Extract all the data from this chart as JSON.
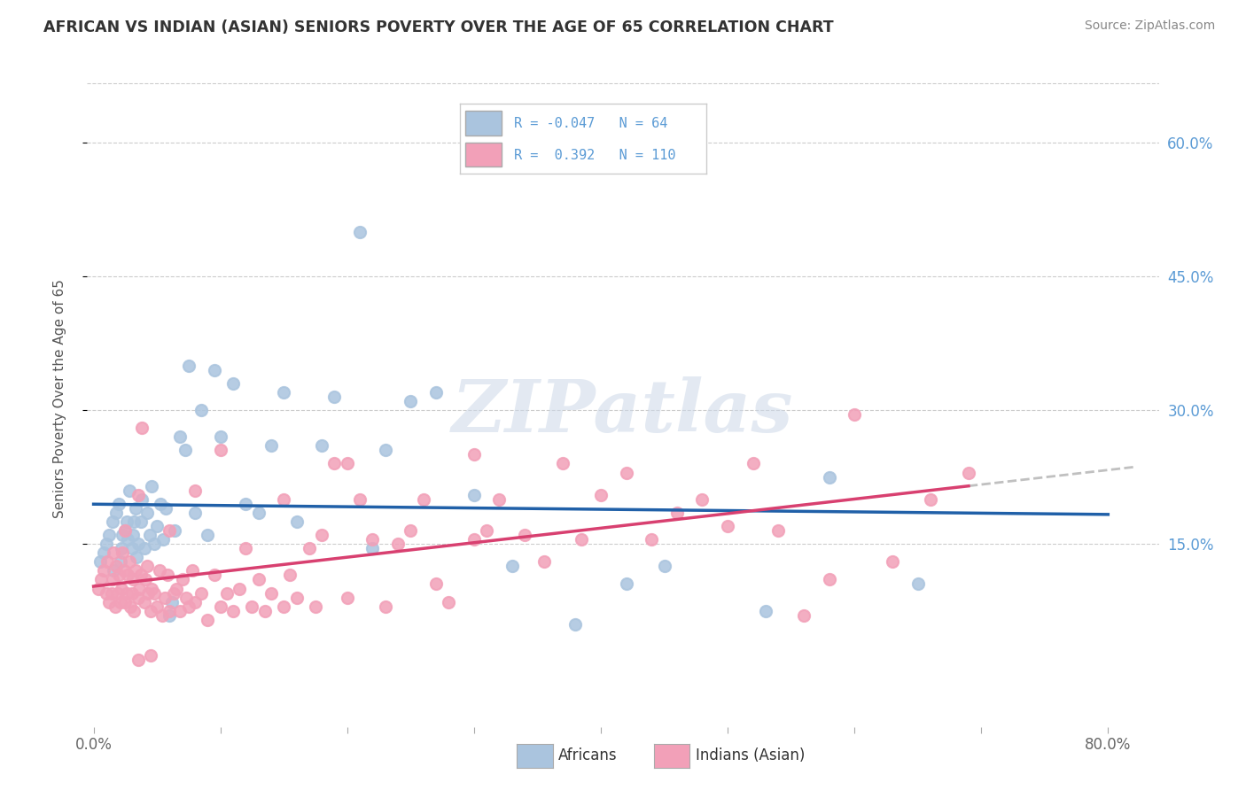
{
  "title": "AFRICAN VS INDIAN (ASIAN) SENIORS POVERTY OVER THE AGE OF 65 CORRELATION CHART",
  "source": "Source: ZipAtlas.com",
  "ylabel": "Seniors Poverty Over the Age of 65",
  "yticks_labels": [
    "60.0%",
    "45.0%",
    "30.0%",
    "15.0%"
  ],
  "ytick_vals": [
    0.6,
    0.45,
    0.3,
    0.15
  ],
  "xlim": [
    -0.005,
    0.84
  ],
  "ylim": [
    -0.055,
    0.68
  ],
  "african_color": "#aac4de",
  "indian_color": "#f2a0b8",
  "african_R": -0.047,
  "african_N": 64,
  "indian_R": 0.392,
  "indian_N": 110,
  "legend_label_1": "Africans",
  "legend_label_2": "Indians (Asian)",
  "trend_african_color": "#2060a8",
  "trend_indian_color": "#d84070",
  "trend_dash_color": "#c0c0c0",
  "watermark_text": "ZIPatlas",
  "xtick_positions": [
    0.0,
    0.1,
    0.2,
    0.3,
    0.4,
    0.5,
    0.6,
    0.7,
    0.8
  ],
  "africans_x": [
    0.005,
    0.008,
    0.01,
    0.012,
    0.015,
    0.016,
    0.018,
    0.02,
    0.021,
    0.022,
    0.023,
    0.025,
    0.026,
    0.027,
    0.028,
    0.03,
    0.031,
    0.032,
    0.033,
    0.034,
    0.035,
    0.037,
    0.038,
    0.04,
    0.042,
    0.044,
    0.046,
    0.048,
    0.05,
    0.053,
    0.055,
    0.057,
    0.06,
    0.062,
    0.064,
    0.068,
    0.072,
    0.075,
    0.08,
    0.085,
    0.09,
    0.095,
    0.1,
    0.11,
    0.12,
    0.13,
    0.14,
    0.15,
    0.16,
    0.18,
    0.19,
    0.21,
    0.22,
    0.23,
    0.25,
    0.27,
    0.3,
    0.33,
    0.38,
    0.42,
    0.45,
    0.53,
    0.58,
    0.65
  ],
  "africans_y": [
    0.13,
    0.14,
    0.15,
    0.16,
    0.175,
    0.12,
    0.185,
    0.195,
    0.13,
    0.145,
    0.16,
    0.165,
    0.175,
    0.155,
    0.21,
    0.145,
    0.16,
    0.175,
    0.19,
    0.135,
    0.15,
    0.175,
    0.2,
    0.145,
    0.185,
    0.16,
    0.215,
    0.15,
    0.17,
    0.195,
    0.155,
    0.19,
    0.07,
    0.085,
    0.165,
    0.27,
    0.255,
    0.35,
    0.185,
    0.3,
    0.16,
    0.345,
    0.27,
    0.33,
    0.195,
    0.185,
    0.26,
    0.32,
    0.175,
    0.26,
    0.315,
    0.5,
    0.145,
    0.255,
    0.31,
    0.32,
    0.205,
    0.125,
    0.06,
    0.105,
    0.125,
    0.075,
    0.225,
    0.105
  ],
  "indians_x": [
    0.004,
    0.006,
    0.008,
    0.01,
    0.011,
    0.012,
    0.014,
    0.015,
    0.016,
    0.017,
    0.018,
    0.019,
    0.02,
    0.021,
    0.022,
    0.023,
    0.024,
    0.025,
    0.026,
    0.027,
    0.028,
    0.029,
    0.03,
    0.031,
    0.032,
    0.033,
    0.035,
    0.036,
    0.037,
    0.038,
    0.04,
    0.041,
    0.042,
    0.043,
    0.045,
    0.046,
    0.048,
    0.05,
    0.052,
    0.054,
    0.056,
    0.058,
    0.06,
    0.063,
    0.065,
    0.068,
    0.07,
    0.073,
    0.075,
    0.078,
    0.08,
    0.085,
    0.09,
    0.095,
    0.1,
    0.105,
    0.11,
    0.115,
    0.12,
    0.125,
    0.13,
    0.135,
    0.14,
    0.15,
    0.155,
    0.16,
    0.17,
    0.175,
    0.18,
    0.19,
    0.2,
    0.21,
    0.22,
    0.23,
    0.24,
    0.25,
    0.26,
    0.27,
    0.28,
    0.3,
    0.31,
    0.32,
    0.34,
    0.355,
    0.37,
    0.385,
    0.4,
    0.42,
    0.44,
    0.46,
    0.48,
    0.5,
    0.52,
    0.54,
    0.56,
    0.58,
    0.6,
    0.63,
    0.66,
    0.69,
    0.025,
    0.035,
    0.06,
    0.08,
    0.1,
    0.15,
    0.2,
    0.3,
    0.035,
    0.045
  ],
  "indians_y": [
    0.1,
    0.11,
    0.12,
    0.095,
    0.13,
    0.085,
    0.095,
    0.11,
    0.14,
    0.08,
    0.125,
    0.095,
    0.115,
    0.085,
    0.1,
    0.14,
    0.12,
    0.085,
    0.095,
    0.115,
    0.13,
    0.08,
    0.095,
    0.11,
    0.075,
    0.12,
    0.09,
    0.1,
    0.115,
    0.28,
    0.085,
    0.11,
    0.125,
    0.095,
    0.075,
    0.1,
    0.095,
    0.08,
    0.12,
    0.07,
    0.09,
    0.115,
    0.075,
    0.095,
    0.1,
    0.075,
    0.11,
    0.09,
    0.08,
    0.12,
    0.085,
    0.095,
    0.065,
    0.115,
    0.08,
    0.095,
    0.075,
    0.1,
    0.145,
    0.08,
    0.11,
    0.075,
    0.095,
    0.08,
    0.115,
    0.09,
    0.145,
    0.08,
    0.16,
    0.24,
    0.09,
    0.2,
    0.155,
    0.08,
    0.15,
    0.165,
    0.2,
    0.105,
    0.085,
    0.155,
    0.165,
    0.2,
    0.16,
    0.13,
    0.24,
    0.155,
    0.205,
    0.23,
    0.155,
    0.185,
    0.2,
    0.17,
    0.24,
    0.165,
    0.07,
    0.11,
    0.295,
    0.13,
    0.2,
    0.23,
    0.165,
    0.205,
    0.165,
    0.21,
    0.255,
    0.2,
    0.24,
    0.25,
    0.02,
    0.025
  ]
}
